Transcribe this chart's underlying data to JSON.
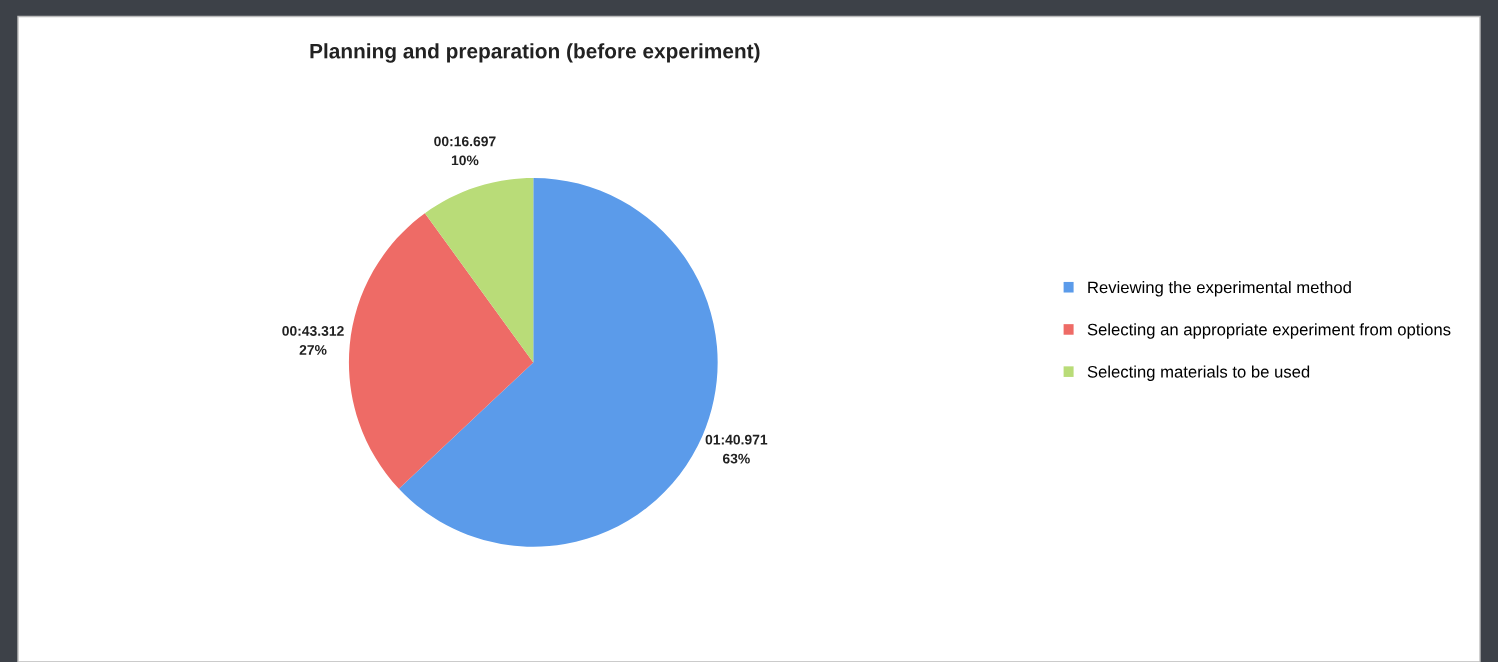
{
  "chart_data": {
    "type": "pie",
    "title": "Planning and preparation (before experiment)",
    "categories": [
      "Reviewing the experimental method",
      "Selecting an appropriate experiment from options",
      "Selecting materials to be used"
    ],
    "values": [
      63,
      27,
      10
    ],
    "colors": [
      "#5b9bea",
      "#ee6b66",
      "#b9dc78"
    ],
    "value_labels": [
      "01:40.971\n63%",
      "00:43.312\n27%",
      "00:16.697\n10%"
    ],
    "legend": "right"
  }
}
